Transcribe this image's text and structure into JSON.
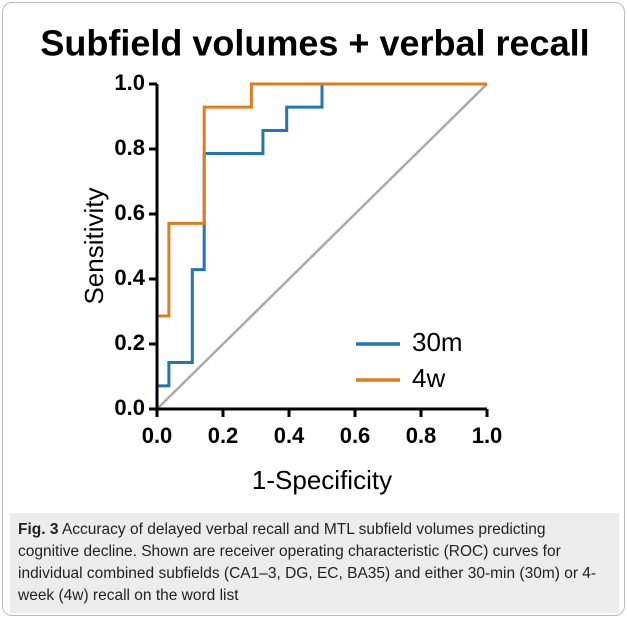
{
  "chart_data": {
    "type": "line",
    "title": "Subfield volumes + verbal recall",
    "xlabel": "1-Specificity",
    "ylabel": "Sensitivity",
    "xlim": [
      0,
      1
    ],
    "ylim": [
      0,
      1
    ],
    "xticks": [
      {
        "value": 0,
        "label": "0.0"
      },
      {
        "value": 0.2,
        "label": "0.2"
      },
      {
        "value": 0.4,
        "label": "0.4"
      },
      {
        "value": 0.6,
        "label": "0.6"
      },
      {
        "value": 0.8,
        "label": "0.8"
      },
      {
        "value": 1,
        "label": "1.0"
      }
    ],
    "yticks": [
      {
        "value": 0,
        "label": "0.0"
      },
      {
        "value": 0.2,
        "label": "0.2"
      },
      {
        "value": 0.4,
        "label": "0.4"
      },
      {
        "value": 0.6,
        "label": "0.6"
      },
      {
        "value": 0.8,
        "label": "0.8"
      },
      {
        "value": 1,
        "label": "1.0"
      }
    ],
    "legend": "lower right",
    "series": [
      {
        "name": "30m",
        "color": "#1f77b4",
        "x": [
          0,
          0,
          0.036,
          0.036,
          0.107,
          0.107,
          0.143,
          0.143,
          0.321,
          0.321,
          0.393,
          0.393,
          0.5,
          0.5,
          1
        ],
        "values": [
          0,
          0.071,
          0.071,
          0.143,
          0.143,
          0.429,
          0.429,
          0.786,
          0.786,
          0.857,
          0.857,
          0.929,
          0.929,
          1,
          1
        ]
      },
      {
        "name": "4w",
        "color": "#e07b1f",
        "x": [
          0,
          0,
          0.036,
          0.036,
          0.143,
          0.143,
          0.286,
          0.286,
          1
        ],
        "values": [
          0,
          0.286,
          0.286,
          0.571,
          0.571,
          0.929,
          0.929,
          1,
          1
        ]
      }
    ]
  },
  "caption": {
    "label": "Fig. 3",
    "text": "Accuracy of delayed verbal recall and MTL subfield volumes predicting cognitive decline. Shown are receiver operating characteristic (ROC) curves for individual combined subfields (CA1–3, DG, EC, BA35) and either 30-min (30m) or 4-week (4w) recall on the word list"
  }
}
